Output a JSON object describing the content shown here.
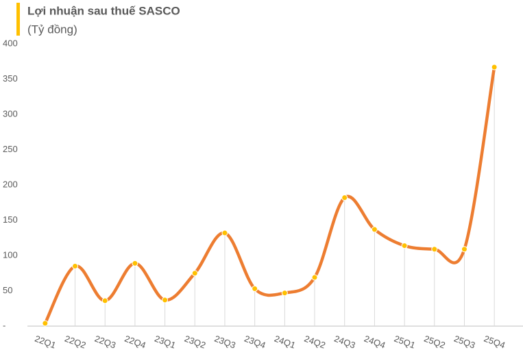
{
  "chart_data": {
    "type": "line",
    "title": "Lợi nhuận sau thuế SASCO",
    "subtitle": "(Tỷ đồng)",
    "categories": [
      "22Q1",
      "22Q2",
      "22Q3",
      "22Q4",
      "23Q1",
      "23Q2",
      "23Q3",
      "23Q4",
      "24Q1",
      "24Q2",
      "24Q3",
      "24Q4",
      "25Q1",
      "25Q2",
      "25Q3",
      "25Q4"
    ],
    "series": [
      {
        "name": "Lợi nhuận sau thuế",
        "color": "#ed7d31",
        "marker_color": "#ffc000",
        "values": [
          4,
          85,
          36,
          89,
          37,
          75,
          132,
          53,
          47,
          69,
          182,
          137,
          114,
          109,
          109,
          367
        ]
      }
    ],
    "ylim": [
      0,
      400
    ],
    "yticks": [
      {
        "value": 0,
        "label": "-"
      },
      50,
      100,
      150,
      200,
      250,
      300,
      350,
      400
    ],
    "smooth": true,
    "drop_lines": true
  }
}
